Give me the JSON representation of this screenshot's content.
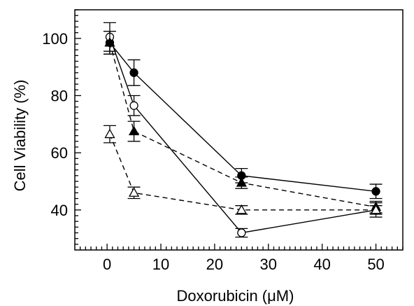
{
  "chart_data": {
    "type": "line",
    "xlabel": "Doxorubicin (μM)",
    "ylabel": "Cell Viability (%)",
    "xlim": [
      -6,
      55
    ],
    "ylim": [
      26,
      110
    ],
    "x_ticks": [
      0,
      10,
      20,
      30,
      40,
      50
    ],
    "y_ticks": [
      40,
      60,
      80,
      100
    ],
    "grid": false,
    "series": [
      {
        "marker": "filled-circle",
        "line_style": "solid",
        "x": [
          0.5,
          5,
          25,
          50
        ],
        "y": [
          98.5,
          88,
          52,
          46.5
        ],
        "err": [
          4,
          4.5,
          2.5,
          2.5
        ]
      },
      {
        "marker": "open-circle",
        "line_style": "solid",
        "x": [
          0.5,
          5,
          25,
          50
        ],
        "y": [
          100.5,
          76.5,
          32,
          40
        ],
        "err": [
          5,
          3.5,
          1.5,
          2.5
        ]
      },
      {
        "marker": "filled-triangle",
        "line_style": "dashed",
        "x": [
          0.5,
          5,
          25,
          50
        ],
        "y": [
          98.5,
          67.5,
          49.5,
          41
        ],
        "err": [
          4,
          3.5,
          2,
          2
        ]
      },
      {
        "marker": "open-triangle",
        "line_style": "dashed",
        "x": [
          0.5,
          5,
          25,
          50
        ],
        "y": [
          66.5,
          46,
          40,
          40
        ],
        "err": [
          3,
          2,
          1.5,
          1.5
        ]
      }
    ]
  }
}
